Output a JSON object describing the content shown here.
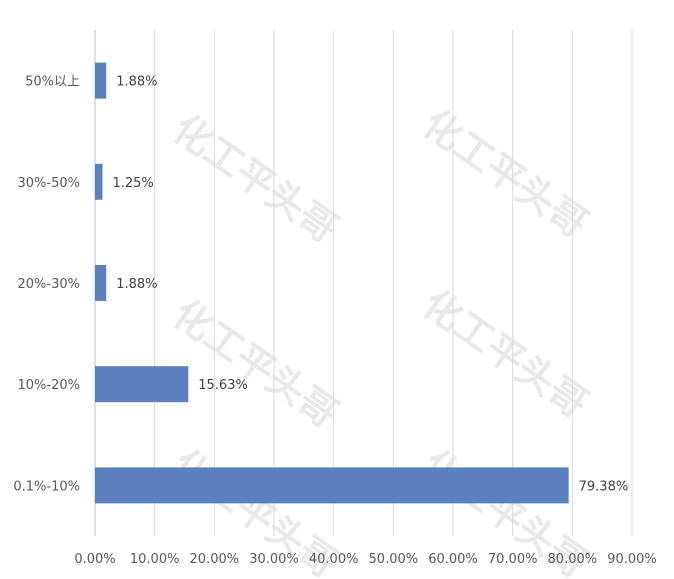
{
  "chart_data": {
    "type": "bar",
    "orientation": "horizontal",
    "title": "",
    "xlabel": "",
    "ylabel": "",
    "categories": [
      "50%以上",
      "30%-50%",
      "20%-30%",
      "10%-20%",
      "0.1%-10%"
    ],
    "values": [
      1.88,
      1.25,
      1.88,
      15.63,
      79.38
    ],
    "data_labels": [
      "1.88%",
      "1.25%",
      "1.88%",
      "15.63%",
      "79.38%"
    ],
    "xlim": [
      0,
      90
    ],
    "xticks": [
      "0.00%",
      "10.00%",
      "20.00%",
      "30.00%",
      "40.00%",
      "50.00%",
      "60.00%",
      "70.00%",
      "80.00%",
      "90.00%"
    ],
    "grid": true,
    "legend": "none",
    "bar_color": "#5b7fbf",
    "watermark": "化工平头哥"
  }
}
